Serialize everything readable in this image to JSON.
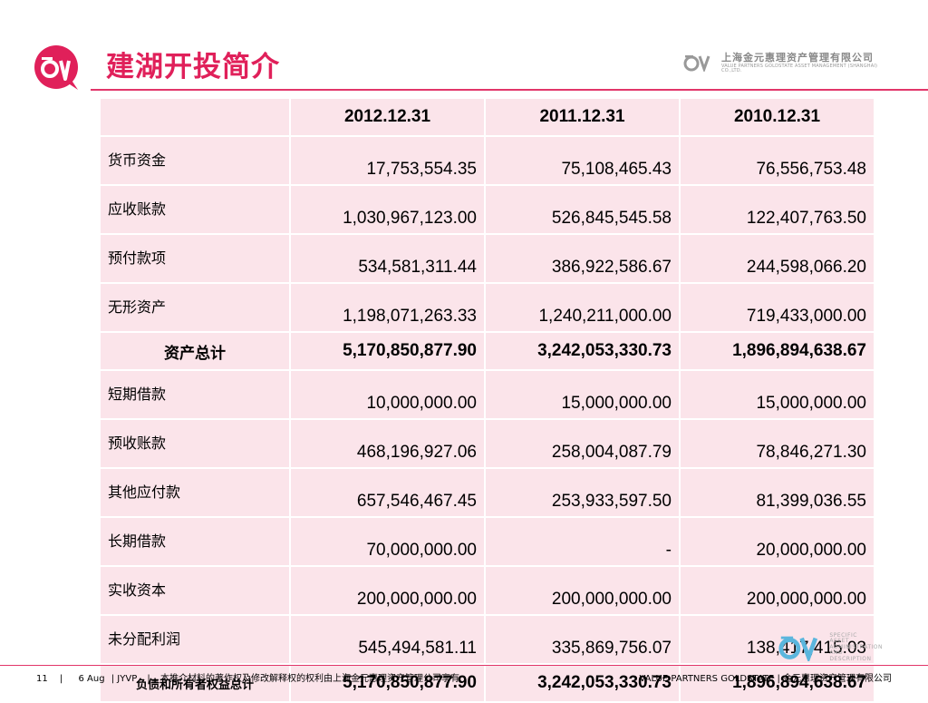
{
  "title": "建湖开投简介",
  "brand": {
    "cn": "上海金元惠理资产管理有限公司",
    "en": "VALUE PARTNERS GOLDSTATE ASSET MANAGEMENT (SHANGHAI) CO.,LTD."
  },
  "table": {
    "headers": [
      "",
      "2012.12.31",
      "2011.12.31",
      "2010.12.31"
    ],
    "rows": [
      {
        "label": "货币资金",
        "values": [
          "17,753,554.35",
          "75,108,465.43",
          "76,556,753.48"
        ]
      },
      {
        "label": "应收账款",
        "values": [
          "1,030,967,123.00",
          "526,845,545.58",
          "122,407,763.50"
        ]
      },
      {
        "label": "预付款项",
        "values": [
          "534,581,311.44",
          "386,922,586.67",
          "244,598,066.20"
        ]
      },
      {
        "label": "无形资产",
        "values": [
          "1,198,071,263.33",
          "1,240,211,000.00",
          "719,433,000.00"
        ]
      },
      {
        "label": "资产总计",
        "values": [
          "5,170,850,877.90",
          "3,242,053,330.73",
          "1,896,894,638.67"
        ]
      },
      {
        "label": "短期借款",
        "values": [
          "10,000,000.00",
          "15,000,000.00",
          "15,000,000.00"
        ]
      },
      {
        "label": "预收账款",
        "values": [
          "468,196,927.06",
          "258,004,087.79",
          "78,846,271.30"
        ]
      },
      {
        "label": "其他应付款",
        "values": [
          "657,546,467.45",
          "253,933,597.50",
          "81,399,036.55"
        ]
      },
      {
        "label": "长期借款",
        "values": [
          "70,000,000.00",
          "-",
          "20,000,000.00"
        ]
      },
      {
        "label": "实收资本",
        "values": [
          "200,000,000.00",
          "200,000,000.00",
          "200,000,000.00"
        ]
      },
      {
        "label": "未分配利润",
        "values": [
          "545,494,581.11",
          "335,869,756.07",
          "138,417,415.03"
        ]
      },
      {
        "label": "负债和所有者权益总计",
        "values": [
          "5,170,850,877.90",
          "3,242,053,330.73",
          "1,896,894,638.67"
        ]
      }
    ]
  },
  "watermark": {
    "lines": [
      "SPECIFIC",
      "ASSET",
      "ADMINISTRATION",
      "AND",
      "DESCRIPTION"
    ]
  },
  "footer": {
    "page": "11",
    "sep1": "|",
    "date": "6 Aug",
    "sep2": "| JYVP",
    "sep3": "|",
    "notice": "本推介材料的著作权及修改解释权的权利由上海金元惠理资产管理公司享有",
    "right": "VALUE  PARTNERS  GOLDSTATE | 金元惠理资产管理有限公司"
  },
  "colors": {
    "accent": "#e0205a",
    "cell_bg": "#fbe4ea",
    "rule": "#e2366a"
  }
}
